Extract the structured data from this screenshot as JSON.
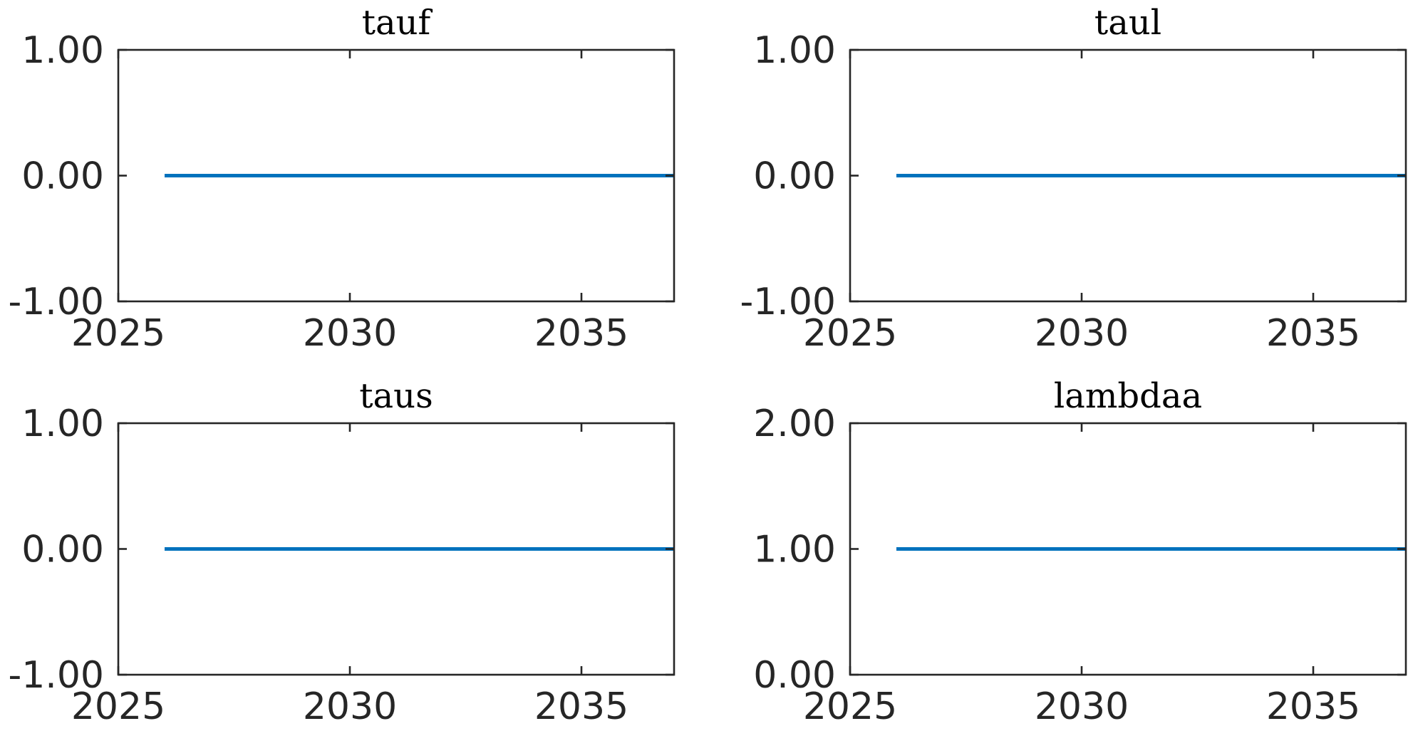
{
  "chart_data": [
    {
      "type": "line",
      "title": "tauf",
      "xlim": [
        2025,
        2037
      ],
      "ylim": [
        -1,
        1
      ],
      "xticks": [
        2025,
        2030,
        2035
      ],
      "xtick_labels": [
        "2025",
        "2030",
        "2035"
      ],
      "yticks": [
        -1,
        0,
        1
      ],
      "ytick_labels": [
        "-1.00",
        "0.00",
        "1.00"
      ],
      "series": [
        {
          "color": "#0072BD",
          "x": [
            2026,
            2037
          ],
          "y": [
            0,
            0
          ]
        }
      ]
    },
    {
      "type": "line",
      "title": "taul",
      "xlim": [
        2025,
        2037
      ],
      "ylim": [
        -1,
        1
      ],
      "xticks": [
        2025,
        2030,
        2035
      ],
      "xtick_labels": [
        "2025",
        "2030",
        "2035"
      ],
      "yticks": [
        -1,
        0,
        1
      ],
      "ytick_labels": [
        "-1.00",
        "0.00",
        "1.00"
      ],
      "series": [
        {
          "color": "#0072BD",
          "x": [
            2026,
            2037
          ],
          "y": [
            0,
            0
          ]
        }
      ]
    },
    {
      "type": "line",
      "title": "taus",
      "xlim": [
        2025,
        2037
      ],
      "ylim": [
        -1,
        1
      ],
      "xticks": [
        2025,
        2030,
        2035
      ],
      "xtick_labels": [
        "2025",
        "2030",
        "2035"
      ],
      "yticks": [
        -1,
        0,
        1
      ],
      "ytick_labels": [
        "-1.00",
        "0.00",
        "1.00"
      ],
      "series": [
        {
          "color": "#0072BD",
          "x": [
            2026,
            2037
          ],
          "y": [
            0,
            0
          ]
        }
      ]
    },
    {
      "type": "line",
      "title": "lambdaa",
      "xlim": [
        2025,
        2037
      ],
      "ylim": [
        0,
        2
      ],
      "xticks": [
        2025,
        2030,
        2035
      ],
      "xtick_labels": [
        "2025",
        "2030",
        "2035"
      ],
      "yticks": [
        0,
        1,
        2
      ],
      "ytick_labels": [
        "0.00",
        "1.00",
        "2.00"
      ],
      "series": [
        {
          "color": "#0072BD",
          "x": [
            2026,
            2037
          ],
          "y": [
            1,
            1
          ]
        }
      ]
    }
  ]
}
